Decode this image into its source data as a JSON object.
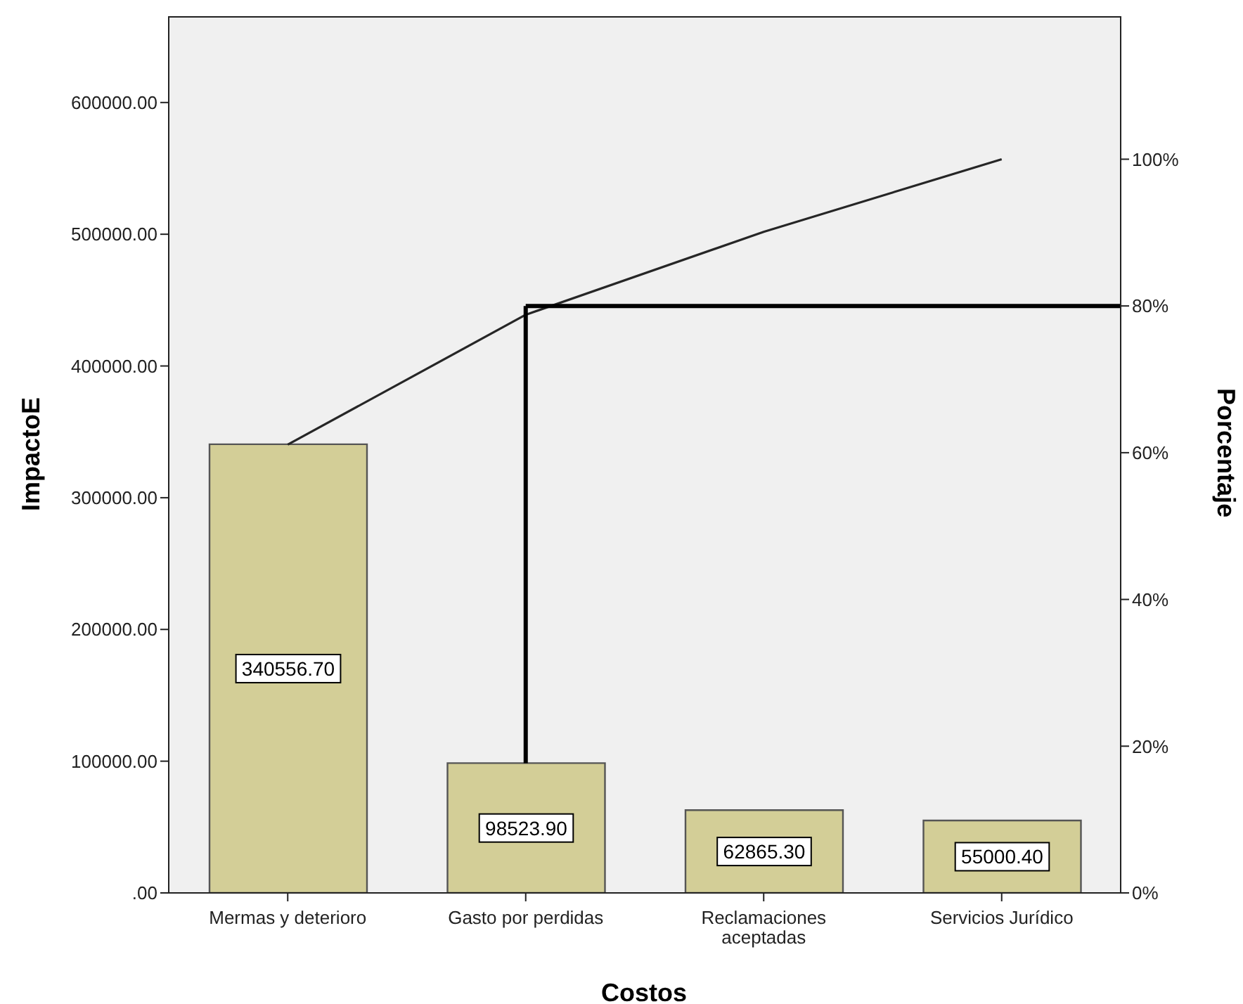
{
  "chart_data": {
    "type": "bar",
    "xlabel": "Costos",
    "ylabel": "ImpactoE",
    "y2label": "Porcentaje",
    "categories": [
      "Mermas y deterioro",
      "Gasto por perdidas",
      "Reclamaciones aceptadas",
      "Servicios Jurídico"
    ],
    "series": [
      {
        "color": "#d3ce97",
        "values": [
          340556.7,
          98523.9,
          62865.3,
          55000.4
        ],
        "value_labels": [
          "340556.70",
          "98523.90",
          "62865.30",
          "55000.40"
        ]
      },
      {
        "type": "line",
        "axis": "y2",
        "color": "#262626",
        "values": [
          61.1,
          78.8,
          90.1,
          100
        ]
      }
    ],
    "ylim": [
      0,
      665000
    ],
    "yticks": [
      {
        "value": 0,
        "label": ".00"
      },
      {
        "value": 100000,
        "label": "100000.00"
      },
      {
        "value": 200000,
        "label": "200000.00"
      },
      {
        "value": 300000,
        "label": "300000.00"
      },
      {
        "value": 400000,
        "label": "400000.00"
      },
      {
        "value": 500000,
        "label": "500000.00"
      },
      {
        "value": 600000,
        "label": "600000.00"
      }
    ],
    "y2lim": [
      0,
      119.4
    ],
    "y2ticks": [
      {
        "value": 0,
        "label": "0%"
      },
      {
        "value": 20,
        "label": "20%"
      },
      {
        "value": 40,
        "label": "40%"
      },
      {
        "value": 60,
        "label": "60%"
      },
      {
        "value": 80,
        "label": "80%"
      },
      {
        "value": 100,
        "label": "100%"
      }
    ],
    "ref_lines": [
      {
        "axis": "y2",
        "value": 80,
        "color": "#000000"
      },
      {
        "axis": "x",
        "value": "Gasto por perdidas",
        "color": "#000000"
      }
    ],
    "marker": "none",
    "line_style": "solid"
  }
}
